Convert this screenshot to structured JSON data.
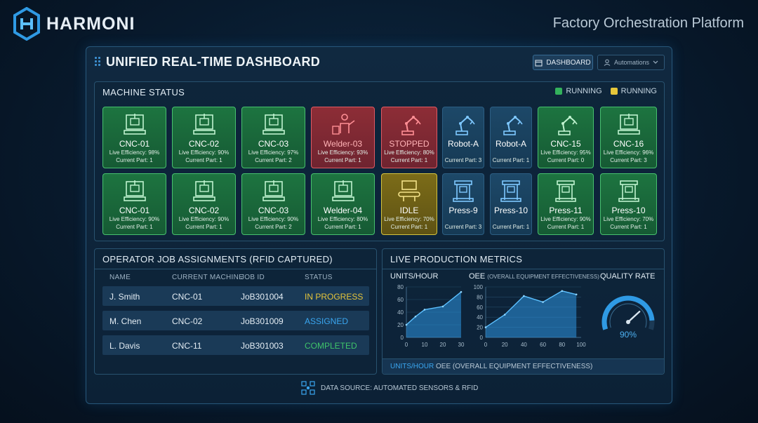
{
  "brand": {
    "name": "HARMONI",
    "tagline": "Factory Orchestration Platform"
  },
  "dashboard": {
    "title": "UNIFIED REAL-TIME DASHBOARD",
    "dashboard_button": "DASHBOARD",
    "automations_button": "Automations"
  },
  "colors": {
    "running": "#2fae57",
    "warning": "#e2c43a",
    "stopped": "#d64a55",
    "idle_blue": "#1d4868",
    "accent": "#3aa6f0"
  },
  "machine_status": {
    "title": "MACHINE STATUS",
    "legend": [
      {
        "label": "RUNNING",
        "color": "#33b25c"
      },
      {
        "label": "RUNNING",
        "color": "#e6c73a"
      }
    ],
    "tiles": [
      {
        "name": "CNC-01",
        "efficiency": "Live Efficiency: 98%",
        "part": "Current Part: 1",
        "status": "green",
        "icon": "cnc-icon"
      },
      {
        "name": "CNC-02",
        "efficiency": "Live Efficiency: 90%",
        "part": "Current Part: 1",
        "status": "green",
        "icon": "cnc-icon"
      },
      {
        "name": "CNC-03",
        "efficiency": "Live Efficiency: 97%",
        "part": "Current Part: 2",
        "status": "green",
        "icon": "cnc-icon"
      },
      {
        "name": "Welder-03",
        "efficiency": "Live Efficiency: 93%",
        "part": "Current Part: 1",
        "status": "red",
        "icon": "welder-icon"
      },
      {
        "name": "STOPPED",
        "efficiency": "Live Efficiency: 80%",
        "part": "Current Part: 1",
        "status": "red",
        "icon": "robot-arm-icon"
      },
      {
        "name": "Robot-A",
        "efficiency": "",
        "part": "Current Part: 3",
        "status": "blue",
        "icon": "robot-arm-icon"
      },
      {
        "name": "Robot-A",
        "efficiency": "",
        "part": "Current Part: 1",
        "status": "blue",
        "icon": "robot-arm-icon"
      },
      {
        "name": "CNC-15",
        "efficiency": "Live Efficiency: 95%",
        "part": "Current Part: 0",
        "status": "green",
        "icon": "robot-arm-icon"
      },
      {
        "name": "CNC-16",
        "efficiency": "Live Efficiency: 96%",
        "part": "Current Part: 3",
        "status": "green",
        "icon": "cnc-icon"
      },
      {
        "name": "CNC-01",
        "efficiency": "Live Efficiency: 90%",
        "part": "Current Part: 1",
        "status": "green",
        "icon": "cnc-icon"
      },
      {
        "name": "CNC-02",
        "efficiency": "Live Efficiency: 90%",
        "part": "Current Part: 1",
        "status": "green",
        "icon": "cnc-icon"
      },
      {
        "name": "CNC-03",
        "efficiency": "Live Efficiency: 90%",
        "part": "Current Part: 2",
        "status": "green",
        "icon": "cnc-icon"
      },
      {
        "name": "Welder-04",
        "efficiency": "Live Efficiency: 80%",
        "part": "Current Part: 1",
        "status": "green",
        "icon": "cnc-icon"
      },
      {
        "name": "IDLE",
        "efficiency": "Live Efficiency: 70%",
        "part": "Current Part: 1",
        "status": "yellow",
        "icon": "conveyor-icon"
      },
      {
        "name": "Press-9",
        "efficiency": "",
        "part": "Current Part: 3",
        "status": "blue",
        "icon": "press-icon"
      },
      {
        "name": "Press-10",
        "efficiency": "",
        "part": "Current Part: 1",
        "status": "blue",
        "icon": "press-icon"
      },
      {
        "name": "Press-11",
        "efficiency": "Live Efficiency: 90%",
        "part": "Current Part: 1",
        "status": "green",
        "icon": "press-icon"
      },
      {
        "name": "Press-10",
        "efficiency": "Live Efficiency: 70%",
        "part": "Current Part: 1",
        "status": "green",
        "icon": "press-icon"
      }
    ]
  },
  "jobs": {
    "title": "OPERATOR JOB ASSIGNMENTS (RFID CAPTURED)",
    "columns": [
      "NAME",
      "CURRENT MACHINE",
      "JOB ID",
      "STATUS"
    ],
    "rows": [
      {
        "name": "J. Smith",
        "machine": "CNC-01",
        "job_id": "JoB301004",
        "status": "IN PROGRESS",
        "status_color": "#e6c53a"
      },
      {
        "name": "M. Chen",
        "machine": "CNC-02",
        "job_id": "JoB301009",
        "status": "ASSIGNED",
        "status_color": "#3aa6f0"
      },
      {
        "name": "L. Davis",
        "machine": "CNC-11",
        "job_id": "JoB301003",
        "status": "COMPLETED",
        "status_color": "#3fc46a"
      }
    ]
  },
  "metrics": {
    "title": "LIVE PRODUCTION METRICS",
    "units_title": "UNITS/HOUR",
    "oee_title": "OEE",
    "oee_subtitle": "(OVERALL EQUIPMENT EFFECTIVENESS)",
    "quality_title": "QUALITY RATE",
    "quality_value": "90%",
    "footer_units": "UNITS/HOUR",
    "footer_oee": "OEE (OVERALL EQUIPMENT EFFECTIVENESS)"
  },
  "chart_data": [
    {
      "type": "area",
      "title": "UNITS/HOUR",
      "x": [
        0,
        5,
        10,
        20,
        30
      ],
      "values": [
        20,
        33,
        44,
        49,
        72
      ],
      "xticks": [
        "0",
        "10",
        "20",
        "30"
      ],
      "yticks": [
        "0",
        "20",
        "40",
        "60",
        "80"
      ],
      "xlim": [
        0,
        30
      ],
      "ylim": [
        0,
        80
      ]
    },
    {
      "type": "area",
      "title": "OEE",
      "x": [
        0,
        20,
        40,
        60,
        80,
        95
      ],
      "values": [
        20,
        45,
        82,
        70,
        92,
        85
      ],
      "xticks": [
        "0",
        "20",
        "40",
        "60",
        "80",
        "100"
      ],
      "yticks": [
        "0",
        "20",
        "40",
        "60",
        "80",
        "100"
      ],
      "xlim": [
        0,
        100
      ],
      "ylim": [
        0,
        100
      ]
    },
    {
      "type": "gauge",
      "title": "QUALITY RATE",
      "value": 90,
      "max": 100
    }
  ],
  "footer": {
    "source": "DATA SOURCE: AUTOMATED SENSORS & RFID"
  }
}
